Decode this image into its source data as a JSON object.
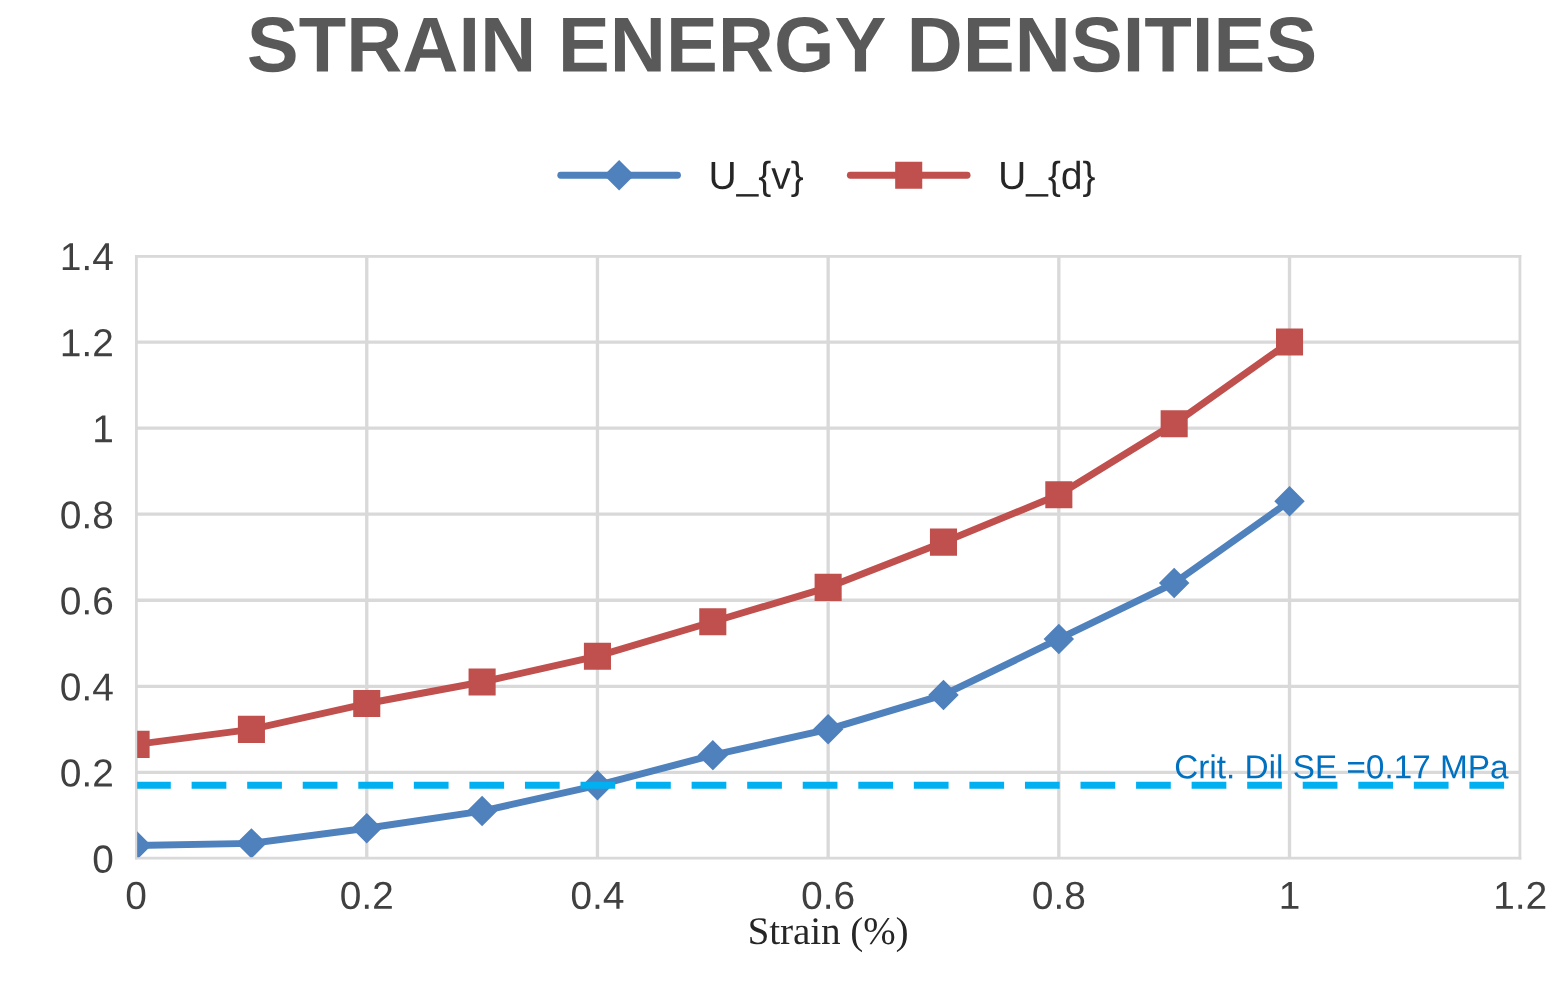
{
  "chart_data": {
    "type": "line",
    "title": "STRAIN ENERGY DENSITIES",
    "xlabel": "Strain (%)",
    "x": [
      0,
      0.1,
      0.2,
      0.3,
      0.4,
      0.5,
      0.6,
      0.7,
      0.8,
      0.9,
      1
    ],
    "series": [
      {
        "name": "U_{v}",
        "color": "#4f81bd",
        "marker": "diamond",
        "values": [
          0.03,
          0.035,
          0.07,
          0.11,
          0.17,
          0.24,
          0.3,
          0.38,
          0.51,
          0.64,
          0.83
        ]
      },
      {
        "name": "U_{d}",
        "color": "#c0504d",
        "marker": "square",
        "values": [
          0.265,
          0.3,
          0.36,
          0.41,
          0.47,
          0.55,
          0.63,
          0.735,
          0.845,
          1.01,
          1.2
        ]
      }
    ],
    "ref_lines": [
      {
        "axis": "y",
        "value": 0.17,
        "label": "Crit. Dil SE =0.17 MPa",
        "color": "#00b0f0",
        "line_style": "dashed"
      }
    ],
    "xlim": [
      0,
      1.2
    ],
    "xticks": [
      0,
      0.2,
      0.4,
      0.6,
      0.8,
      1,
      1.2
    ],
    "ylim": [
      0,
      1.4
    ],
    "yticks": [
      0,
      0.2,
      0.4,
      0.6,
      0.8,
      1,
      1.2,
      1.4
    ],
    "grid": true,
    "legend": "top",
    "line_style": "solid"
  }
}
